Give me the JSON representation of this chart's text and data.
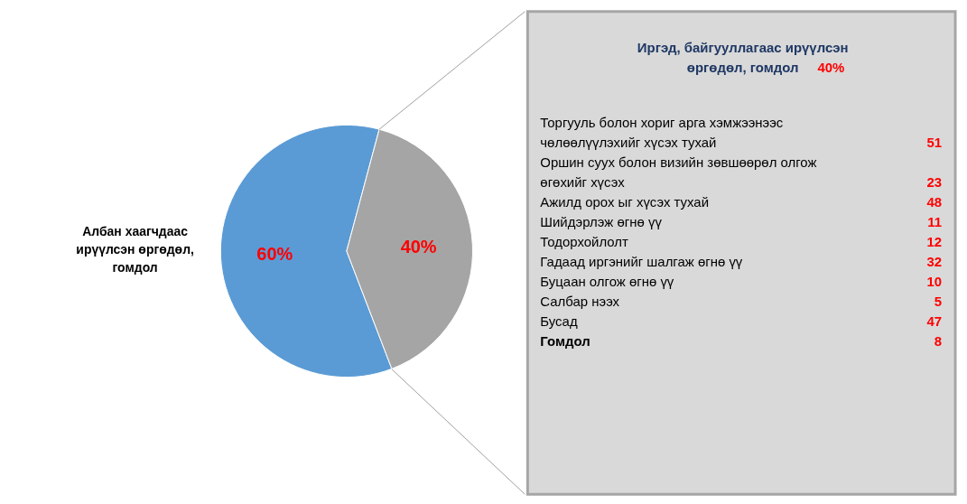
{
  "chart_data": [
    {
      "type": "pie",
      "categories": [
        "Албан хаагчдаас\nирүүлсэн өргөдөл,\nгомдол",
        null
      ],
      "values": [
        60,
        40
      ],
      "colors": [
        "#5b9bd5",
        "#a5a5a5"
      ],
      "value_labels": [
        "60%",
        "40%"
      ]
    },
    {
      "type": "other",
      "title": "Иргэд, байгууллагаас ирүүлсэн\nөргөдөл, гомдол",
      "annotations": [
        "40%"
      ],
      "categories": [
        "Торгууль болон хориг арга хэмжээнээс\nчөлөөлүүлэхийг хүсэх тухай",
        "Оршин суух болон визийн зөвшөөрөл олгож\nөгөхийг хүсэх",
        "Ажилд орох ыг хүсэх тухай",
        "Шийдэрлэж өгнө үү",
        "Тодорхойлолт",
        "Гадаад иргэнийг шалгаж өгнө үү",
        "Буцаан олгож өгнө үү",
        "Салбар нээх",
        "Бусад",
        "Гомдол"
      ],
      "values": [
        51,
        23,
        48,
        11,
        12,
        32,
        10,
        5,
        47,
        8
      ],
      "data_labels": true
    }
  ]
}
